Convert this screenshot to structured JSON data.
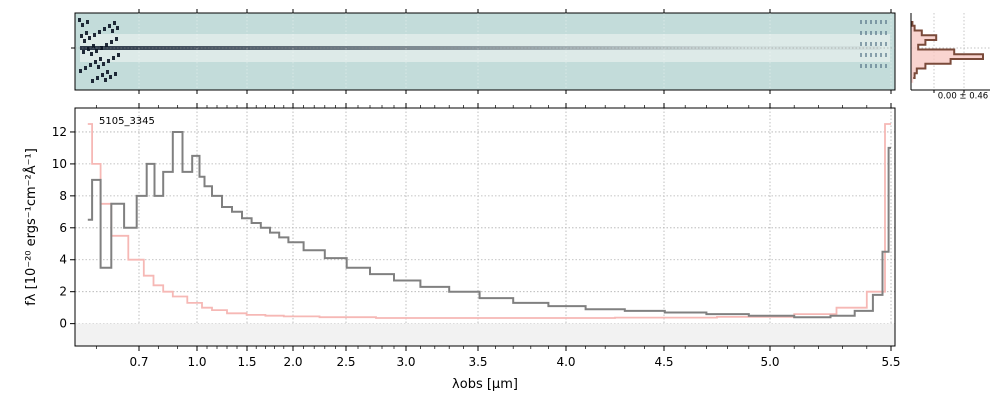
{
  "chart_data": [
    {
      "type": "heatmap",
      "panel": "2D spectrum",
      "colormap": "bone (light teal background, dark trace)",
      "background_color": "#c3dcda",
      "trace_color": "#0e1a2e"
    },
    {
      "type": "line",
      "panel": "1D profile",
      "tick_label": "0.00 ± 0.46",
      "profile_color": "#7a4a3a",
      "fill_color": "#f8c9c4",
      "profile": [
        0.02,
        0.05,
        0.15,
        0.35,
        0.2,
        0.1,
        0.6,
        1.0,
        0.55,
        0.2,
        0.08,
        0.05,
        0.03
      ]
    },
    {
      "type": "line",
      "panel": "1D spectrum",
      "annotation": "5105_3345",
      "xlabel": "λobs [μm]",
      "ylabel": "fλ [10⁻²⁰ ergs⁻¹cm⁻²Å⁻¹]",
      "xlim": [
        0.55,
        5.52
      ],
      "ylim": [
        -1.4,
        13.5
      ],
      "x_scale": "nonlinear, wavelength tick labels",
      "yticks": [
        0,
        2,
        4,
        6,
        8,
        10,
        12
      ],
      "xticks": [
        "0.7",
        "1.0",
        "1.5",
        "2.0",
        "2.5",
        "3.0",
        "3.5",
        "4.0",
        "4.5",
        "5.0",
        "5.5"
      ],
      "xtick_values": [
        0.7,
        1.0,
        1.5,
        2.0,
        2.5,
        3.0,
        3.5,
        4.0,
        4.5,
        5.0,
        5.5
      ],
      "grid": true,
      "series": [
        {
          "role": "data",
          "color": "#808080",
          "points": [
            [
              0.58,
              6.5
            ],
            [
              0.6,
              9.0
            ],
            [
              0.62,
              3.5
            ],
            [
              0.65,
              7.5
            ],
            [
              0.68,
              6.0
            ],
            [
              0.72,
              8.0
            ],
            [
              0.76,
              10.0
            ],
            [
              0.8,
              8.0
            ],
            [
              0.85,
              9.5
            ],
            [
              0.9,
              12.0
            ],
            [
              0.95,
              9.5
            ],
            [
              1.0,
              10.5
            ],
            [
              1.05,
              9.2
            ],
            [
              1.1,
              8.6
            ],
            [
              1.2,
              8.0
            ],
            [
              1.3,
              7.3
            ],
            [
              1.4,
              7.0
            ],
            [
              1.5,
              6.6
            ],
            [
              1.6,
              6.3
            ],
            [
              1.7,
              6.0
            ],
            [
              1.8,
              5.7
            ],
            [
              1.9,
              5.4
            ],
            [
              2.0,
              5.1
            ],
            [
              2.2,
              4.6
            ],
            [
              2.4,
              4.1
            ],
            [
              2.6,
              3.5
            ],
            [
              2.8,
              3.1
            ],
            [
              3.0,
              2.7
            ],
            [
              3.2,
              2.3
            ],
            [
              3.4,
              2.0
            ],
            [
              3.6,
              1.6
            ],
            [
              3.8,
              1.3
            ],
            [
              4.0,
              1.1
            ],
            [
              4.2,
              0.9
            ],
            [
              4.4,
              0.8
            ],
            [
              4.6,
              0.7
            ],
            [
              4.8,
              0.6
            ],
            [
              5.0,
              0.5
            ],
            [
              5.2,
              0.4
            ],
            [
              5.3,
              0.5
            ],
            [
              5.4,
              0.8
            ],
            [
              5.45,
              1.8
            ],
            [
              5.48,
              4.5
            ],
            [
              5.5,
              11.0
            ]
          ]
        },
        {
          "role": "model",
          "color": "#f6b8b5",
          "points": [
            [
              0.58,
              12.5
            ],
            [
              0.6,
              10.0
            ],
            [
              0.62,
              7.5
            ],
            [
              0.65,
              5.5
            ],
            [
              0.7,
              4.0
            ],
            [
              0.75,
              3.0
            ],
            [
              0.8,
              2.4
            ],
            [
              0.85,
              2.0
            ],
            [
              0.9,
              1.7
            ],
            [
              1.0,
              1.3
            ],
            [
              1.1,
              1.0
            ],
            [
              1.2,
              0.85
            ],
            [
              1.4,
              0.65
            ],
            [
              1.6,
              0.55
            ],
            [
              1.8,
              0.5
            ],
            [
              2.0,
              0.45
            ],
            [
              2.5,
              0.4
            ],
            [
              3.0,
              0.35
            ],
            [
              3.5,
              0.35
            ],
            [
              4.0,
              0.35
            ],
            [
              4.5,
              0.38
            ],
            [
              5.0,
              0.42
            ],
            [
              5.2,
              0.6
            ],
            [
              5.35,
              1.0
            ],
            [
              5.45,
              2.0
            ],
            [
              5.5,
              12.5
            ]
          ]
        }
      ],
      "dark_series_color": "#808080",
      "model_color": "#f6b8b5"
    }
  ]
}
